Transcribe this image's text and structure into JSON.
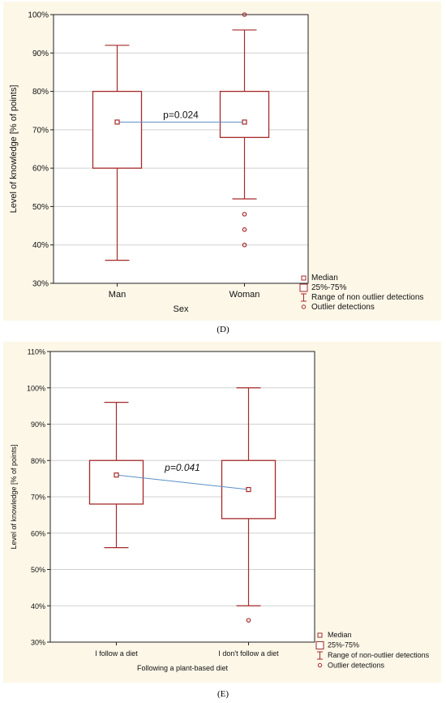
{
  "panels": [
    {
      "caption": "(D)",
      "chart_data": {
        "type": "boxplot",
        "ylabel": "Level of knowledge [% of points]",
        "xlabel": "Sex",
        "ylim": [
          30,
          100
        ],
        "yticks": [
          30,
          40,
          50,
          60,
          70,
          80,
          90,
          100
        ],
        "ytick_labels": [
          "30%",
          "40%",
          "50%",
          "60%",
          "70%",
          "80%",
          "90%",
          "100%"
        ],
        "categories": [
          "Man",
          "Woman"
        ],
        "boxes": [
          {
            "category": "Man",
            "median": 72,
            "q1": 60,
            "q3": 80,
            "whisker_low": 36,
            "whisker_high": 92,
            "outliers": []
          },
          {
            "category": "Woman",
            "median": 72,
            "q1": 68,
            "q3": 80,
            "whisker_low": 52,
            "whisker_high": 96,
            "outliers": [
              48,
              44,
              40,
              100
            ]
          }
        ],
        "annotation": "p=0.024",
        "legend": [
          "Median",
          "25%-75%",
          "Range of non outlier detections",
          "Outlier detections"
        ],
        "grid": true,
        "legend_position": "bottom-right-outside",
        "colors": {
          "box": "#a52a2a",
          "median_line": "#5b8fc7",
          "grid": "#d0d0d0"
        }
      }
    },
    {
      "caption": "(E)",
      "chart_data": {
        "type": "boxplot",
        "ylabel": "Level of knowledge [% of points]",
        "xlabel": "Following a plant-based diet",
        "ylim": [
          30,
          110
        ],
        "yticks": [
          30,
          40,
          50,
          60,
          70,
          80,
          90,
          100,
          110
        ],
        "ytick_labels": [
          "30%",
          "40%",
          "50%",
          "60%",
          "70%",
          "80%",
          "90%",
          "100%",
          "110%"
        ],
        "categories": [
          "I follow a diet",
          "I don't follow a diet"
        ],
        "boxes": [
          {
            "category": "I follow a diet",
            "median": 76,
            "q1": 68,
            "q3": 80,
            "whisker_low": 56,
            "whisker_high": 96,
            "outliers": []
          },
          {
            "category": "I don't follow a diet",
            "median": 72,
            "q1": 64,
            "q3": 80,
            "whisker_low": 40,
            "whisker_high": 100,
            "outliers": [
              36
            ]
          }
        ],
        "annotation": "p=0.041",
        "legend": [
          "Median",
          "25%-75%",
          "Range of non-outlier detections",
          "Outlier detections"
        ],
        "grid": true,
        "legend_position": "bottom-right-outside",
        "colors": {
          "box": "#a52a2a",
          "median_line": "#5b8fc7",
          "grid": "#d0d0d0"
        }
      }
    }
  ]
}
